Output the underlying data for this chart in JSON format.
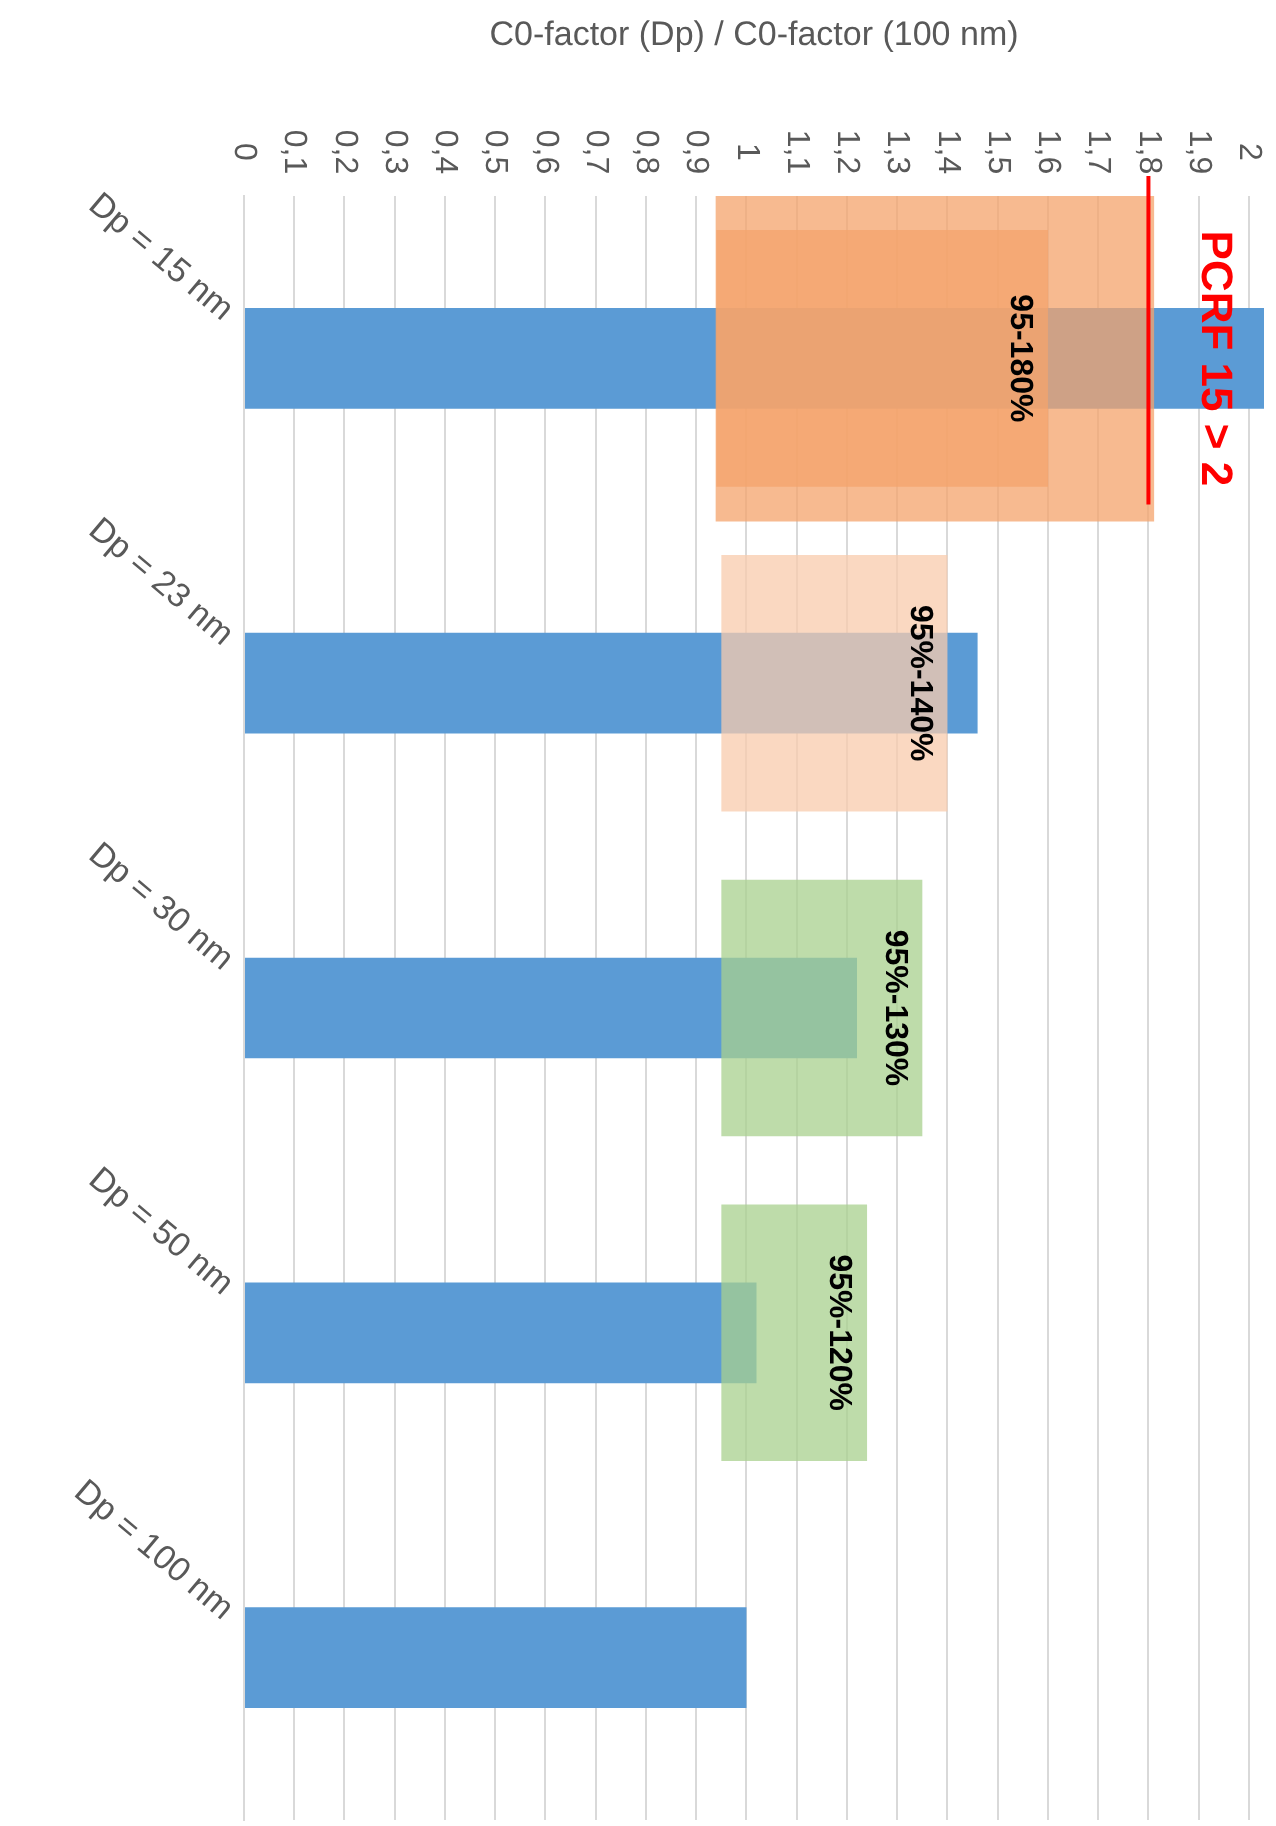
{
  "chart_data": {
    "type": "bar",
    "orientation": "horizontal",
    "xlabel": "C0-factor (Dp) / C0-factor (100 nm)",
    "categories": [
      "Dp = 15 nm",
      "Dp = 23 nm",
      "Dp = 30 nm",
      "Dp = 50 nm",
      "Dp = 100 nm"
    ],
    "series": [
      {
        "color": "#5b9bd5",
        "values": [
          2.03,
          1.46,
          1.22,
          1.02,
          1.0
        ]
      },
      {
        "base": [
          0.94,
          0.95,
          0.95,
          0.95,
          null
        ],
        "values": [
          0.66,
          0.45,
          0.4,
          0.29,
          null
        ],
        "colors": [
          "#f4a46c",
          "#f8cbad",
          "#a9d18e",
          "#a9d18e",
          null
        ]
      },
      {
        "base": [
          0.94,
          null,
          null,
          null,
          null
        ],
        "values": [
          0.87,
          null,
          null,
          null,
          null
        ],
        "colors": [
          "#f4a46c",
          null,
          null,
          null,
          null
        ]
      }
    ],
    "xlim": [
      0,
      2.03
    ],
    "xticks": [
      0,
      {
        "value": 0.1,
        "label": "0,1"
      },
      {
        "value": 0.2,
        "label": "0,2"
      },
      {
        "value": 0.3,
        "label": "0,3"
      },
      {
        "value": 0.4,
        "label": "0,4"
      },
      {
        "value": 0.5,
        "label": "0,5"
      },
      {
        "value": 0.6,
        "label": "0,6"
      },
      {
        "value": 0.7,
        "label": "0,7"
      },
      {
        "value": 0.8,
        "label": "0,8"
      },
      {
        "value": 0.9,
        "label": "0,9"
      },
      1,
      {
        "value": 1.1,
        "label": "1,1"
      },
      {
        "value": 1.2,
        "label": "1,2"
      },
      {
        "value": 1.3,
        "label": "1,3"
      },
      {
        "value": 1.4,
        "label": "1,4"
      },
      {
        "value": 1.5,
        "label": "1,5"
      },
      {
        "value": 1.6,
        "label": "1,6"
      },
      {
        "value": 1.7,
        "label": "1,7"
      },
      {
        "value": 1.8,
        "label": "1,8"
      },
      {
        "value": 1.9,
        "label": "1,9"
      },
      2
    ],
    "ref_lines": [
      {
        "axis": "x",
        "value": 1.8,
        "label": "PCRF 15 > 2",
        "color": "#ff0000"
      }
    ],
    "annotations": [
      {
        "text": "95-180%",
        "x": 1.6,
        "y": "Dp = 15 nm"
      },
      {
        "text": "95%-140%",
        "x": 1.4,
        "y": "Dp = 23 nm"
      },
      {
        "text": "95%-130%",
        "x": 1.35,
        "y": "Dp = 30 nm"
      },
      {
        "text": "95%-120%",
        "x": 1.24,
        "y": "Dp = 50 nm"
      }
    ],
    "grid": "x",
    "legend": false
  }
}
